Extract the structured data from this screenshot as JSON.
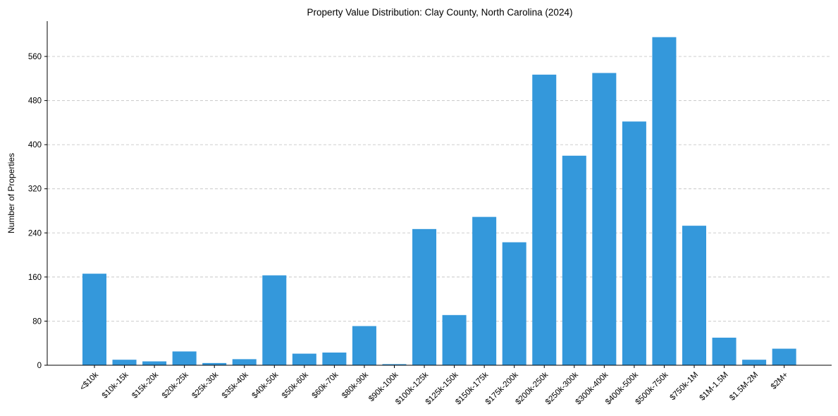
{
  "chart_data": {
    "type": "bar",
    "title": "Property Value Distribution: Clay County, North Carolina (2024)",
    "xlabel": "",
    "ylabel": "Number of Properties",
    "categories": [
      "<$10k",
      "$10k-15k",
      "$15k-20k",
      "$20k-25k",
      "$25k-30k",
      "$35k-40k",
      "$40k-50k",
      "$50k-60k",
      "$60k-70k",
      "$80k-90k",
      "$90k-100k",
      "$100k-125k",
      "$125k-150k",
      "$150k-175k",
      "$175k-200k",
      "$200k-250k",
      "$250k-300k",
      "$300k-400k",
      "$400k-500k",
      "$500k-750k",
      "$750k-1M",
      "$1M-1.5M",
      "$1.5M-2M",
      "$2M+"
    ],
    "values": [
      166,
      10,
      7,
      25,
      4,
      11,
      163,
      21,
      23,
      71,
      2,
      247,
      91,
      269,
      223,
      527,
      380,
      530,
      442,
      595,
      253,
      50,
      10,
      30
    ],
    "yticks": [
      0,
      80,
      160,
      240,
      320,
      400,
      480,
      560
    ],
    "ylim": [
      0,
      624
    ],
    "bar_color": "#3498db",
    "grid": "y-dashed"
  }
}
